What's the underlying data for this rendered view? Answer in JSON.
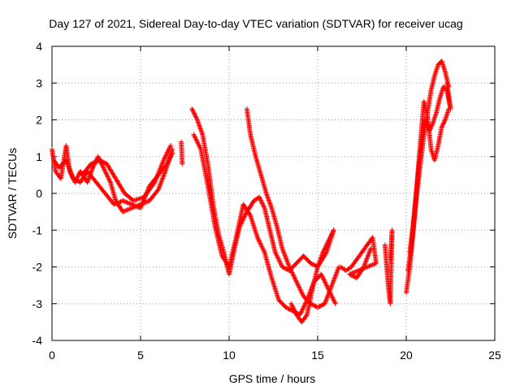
{
  "chart_data": {
    "type": "scatter",
    "title": "Day 127 of 2021, Sidereal Day-to-day VTEC variation (SDTVAR) for receiver ucag",
    "xlabel": "GPS time / hours",
    "ylabel": "SDTVAR / TECUs",
    "xlim": [
      0,
      25
    ],
    "ylim": [
      -4,
      4
    ],
    "xticks": [
      "0",
      "5",
      "10",
      "15",
      "20",
      "25"
    ],
    "yticks": [
      "-4",
      "-3",
      "-2",
      "-1",
      "0",
      "1",
      "2",
      "3",
      "4"
    ],
    "grid": true,
    "marker": "+",
    "marker_color": "#ff0000",
    "series": [
      {
        "values": [
          [
            0.0,
            1.2
          ],
          [
            0.2,
            0.6
          ],
          [
            0.5,
            0.4
          ],
          [
            0.8,
            1.3
          ],
          [
            1.0,
            0.6
          ],
          [
            1.3,
            0.3
          ],
          [
            1.6,
            0.6
          ],
          [
            2.0,
            0.3
          ],
          [
            2.3,
            0.7
          ],
          [
            2.6,
            1.0
          ],
          [
            3.0,
            0.6
          ],
          [
            3.3,
            0.3
          ],
          [
            3.6,
            -0.2
          ],
          [
            4.0,
            -0.5
          ],
          [
            4.5,
            -0.4
          ],
          [
            5.0,
            -0.3
          ],
          [
            5.5,
            -0.2
          ],
          [
            6.0,
            0.1
          ],
          [
            6.4,
            0.6
          ],
          [
            6.8,
            1.2
          ]
        ]
      },
      {
        "values": [
          [
            0.1,
            0.9
          ],
          [
            0.4,
            0.7
          ],
          [
            0.8,
            0.9
          ],
          [
            1.2,
            0.4
          ],
          [
            1.6,
            0.3
          ],
          [
            2.0,
            0.6
          ],
          [
            2.5,
            0.3
          ],
          [
            3.0,
            0.0
          ],
          [
            3.5,
            -0.3
          ],
          [
            4.0,
            -0.2
          ],
          [
            4.5,
            -0.3
          ],
          [
            5.0,
            -0.4
          ],
          [
            5.5,
            0.2
          ],
          [
            6.0,
            0.5
          ],
          [
            6.5,
            0.8
          ],
          [
            6.8,
            1.1
          ]
        ]
      },
      {
        "values": [
          [
            1.7,
            0.5
          ],
          [
            2.2,
            0.8
          ],
          [
            2.7,
            0.9
          ],
          [
            3.1,
            0.8
          ],
          [
            3.6,
            0.4
          ],
          [
            4.1,
            0.0
          ],
          [
            4.6,
            -0.2
          ],
          [
            5.2,
            -0.1
          ],
          [
            5.8,
            0.3
          ],
          [
            6.3,
            0.9
          ],
          [
            6.7,
            1.3
          ]
        ]
      },
      {
        "values": [
          [
            7.9,
            2.3
          ],
          [
            8.2,
            2.0
          ],
          [
            8.5,
            1.6
          ],
          [
            8.8,
            0.8
          ],
          [
            9.1,
            -0.3
          ],
          [
            9.4,
            -1.1
          ],
          [
            9.7,
            -1.6
          ],
          [
            10.0,
            -2.2
          ],
          [
            10.3,
            -1.5
          ],
          [
            10.6,
            -0.9
          ],
          [
            11.0,
            -0.5
          ],
          [
            11.4,
            -0.2
          ],
          [
            11.7,
            -0.1
          ],
          [
            12.0,
            -0.4
          ],
          [
            12.3,
            -1.0
          ],
          [
            12.6,
            -1.6
          ],
          [
            13.0,
            -2.0
          ],
          [
            13.4,
            -2.1
          ],
          [
            13.8,
            -1.9
          ],
          [
            14.2,
            -1.7
          ],
          [
            14.6,
            -1.9
          ],
          [
            15.0,
            -2.0
          ],
          [
            15.5,
            -1.6
          ],
          [
            15.9,
            -1.0
          ]
        ]
      },
      {
        "values": [
          [
            8.0,
            1.6
          ],
          [
            8.4,
            1.2
          ],
          [
            8.8,
            0.2
          ],
          [
            9.2,
            -0.9
          ],
          [
            9.6,
            -1.7
          ],
          [
            10.0,
            -2.0
          ],
          [
            10.4,
            -1.2
          ],
          [
            10.8,
            -0.3
          ],
          [
            11.2,
            -0.6
          ],
          [
            11.6,
            -1.2
          ],
          [
            12.0,
            -1.6
          ],
          [
            12.4,
            -2.3
          ],
          [
            12.8,
            -2.9
          ],
          [
            13.2,
            -3.1
          ],
          [
            13.6,
            -3.2
          ],
          [
            14.0,
            -3.3
          ],
          [
            14.4,
            -2.9
          ],
          [
            14.8,
            -2.4
          ],
          [
            15.2,
            -2.2
          ],
          [
            15.6,
            -2.6
          ],
          [
            16.0,
            -3.0
          ]
        ]
      },
      {
        "values": [
          [
            11.0,
            2.3
          ],
          [
            11.2,
            1.6
          ],
          [
            11.5,
            1.0
          ],
          [
            11.8,
            0.5
          ],
          [
            12.1,
            0.0
          ],
          [
            12.4,
            -0.4
          ],
          [
            12.7,
            -0.9
          ],
          [
            13.0,
            -1.5
          ],
          [
            13.4,
            -2.0
          ],
          [
            13.8,
            -2.4
          ],
          [
            14.2,
            -2.8
          ],
          [
            14.6,
            -3.0
          ],
          [
            15.0,
            -3.1
          ],
          [
            15.4,
            -3.0
          ],
          [
            15.8,
            -2.5
          ],
          [
            16.2,
            -2.0
          ]
        ]
      },
      {
        "values": [
          [
            13.5,
            -3.0
          ],
          [
            13.8,
            -3.3
          ],
          [
            14.1,
            -3.5
          ],
          [
            14.4,
            -3.3
          ],
          [
            14.7,
            -2.6
          ],
          [
            15.0,
            -2.0
          ],
          [
            15.3,
            -1.6
          ],
          [
            15.6,
            -1.3
          ],
          [
            15.9,
            -1.0
          ]
        ]
      },
      {
        "values": [
          [
            16.3,
            -2.0
          ],
          [
            16.6,
            -2.1
          ],
          [
            16.9,
            -2.0
          ],
          [
            17.2,
            -1.8
          ],
          [
            17.5,
            -1.6
          ],
          [
            17.8,
            -1.4
          ],
          [
            18.1,
            -1.2
          ],
          [
            18.3,
            -1.9
          ],
          [
            16.8,
            -2.2
          ],
          [
            17.2,
            -2.3
          ],
          [
            17.6,
            -2.0
          ],
          [
            18.0,
            -1.5
          ]
        ]
      },
      {
        "values": [
          [
            18.8,
            -1.4
          ],
          [
            18.9,
            -2.0
          ],
          [
            19.0,
            -2.6
          ],
          [
            19.1,
            -3.0
          ],
          [
            19.2,
            -1.0
          ],
          [
            19.1,
            -1.8
          ]
        ]
      },
      {
        "values": [
          [
            20.0,
            -2.7
          ],
          [
            20.2,
            -2.0
          ],
          [
            20.4,
            -1.0
          ],
          [
            20.6,
            0.0
          ],
          [
            20.8,
            0.8
          ],
          [
            21.0,
            1.6
          ],
          [
            21.2,
            2.2
          ],
          [
            21.4,
            2.8
          ],
          [
            21.6,
            3.2
          ],
          [
            21.8,
            3.5
          ],
          [
            22.0,
            3.6
          ],
          [
            22.2,
            3.3
          ],
          [
            22.4,
            2.9
          ]
        ]
      },
      {
        "values": [
          [
            20.1,
            -2.1
          ],
          [
            20.3,
            -1.4
          ],
          [
            20.5,
            -0.4
          ],
          [
            20.7,
            0.7
          ],
          [
            20.9,
            1.5
          ],
          [
            21.1,
            2.0
          ],
          [
            21.3,
            1.7
          ],
          [
            21.5,
            1.9
          ],
          [
            21.7,
            2.2
          ],
          [
            21.9,
            2.6
          ],
          [
            22.1,
            2.9
          ],
          [
            22.3,
            2.8
          ],
          [
            22.5,
            2.3
          ],
          [
            22.3,
            3.0
          ]
        ]
      },
      {
        "values": [
          [
            20.2,
            -1.6
          ],
          [
            20.4,
            -0.8
          ],
          [
            20.6,
            0.2
          ],
          [
            20.8,
            1.4
          ],
          [
            21.0,
            2.5
          ],
          [
            21.2,
            2.1
          ],
          [
            21.4,
            1.2
          ],
          [
            21.6,
            0.9
          ],
          [
            21.8,
            1.3
          ],
          [
            22.0,
            1.8
          ],
          [
            22.2,
            2.0
          ],
          [
            22.4,
            2.3
          ]
        ]
      },
      {
        "values": [
          [
            7.3,
            1.4
          ],
          [
            7.35,
            0.8
          ]
        ]
      }
    ]
  }
}
